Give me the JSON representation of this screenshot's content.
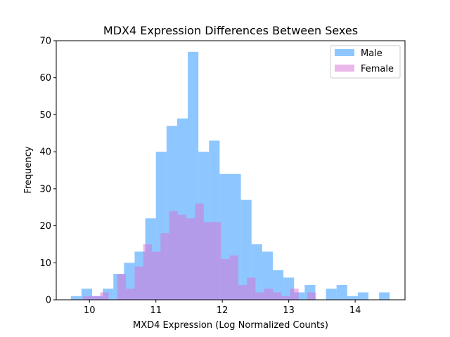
{
  "chart_data": {
    "type": "bar",
    "title": "MDX4 Expression Differences Between Sexes",
    "xlabel": "MXD4 Expression (Log Normalized Counts)",
    "ylabel": "Frequency",
    "xlim": [
      9.5,
      14.75
    ],
    "ylim": [
      0,
      70
    ],
    "xticks": [
      10,
      11,
      12,
      13,
      14
    ],
    "yticks": [
      0,
      10,
      20,
      30,
      40,
      50,
      60,
      70
    ],
    "grid": false,
    "legend_position": "top-right",
    "series": [
      {
        "name": "Male",
        "color": "#1e90ff",
        "opacity": 0.5,
        "bins": [
          [
            9.72,
            9.88,
            1
          ],
          [
            9.88,
            10.04,
            3
          ],
          [
            10.04,
            10.2,
            1
          ],
          [
            10.2,
            10.36,
            3
          ],
          [
            10.36,
            10.52,
            7
          ],
          [
            10.52,
            10.68,
            10
          ],
          [
            10.68,
            10.84,
            13
          ],
          [
            10.84,
            11.0,
            22
          ],
          [
            11.0,
            11.16,
            40
          ],
          [
            11.16,
            11.32,
            47
          ],
          [
            11.32,
            11.48,
            49
          ],
          [
            11.48,
            11.64,
            67
          ],
          [
            11.64,
            11.8,
            40
          ],
          [
            11.8,
            11.96,
            43
          ],
          [
            11.96,
            12.12,
            34
          ],
          [
            12.12,
            12.28,
            34
          ],
          [
            12.28,
            12.44,
            27
          ],
          [
            12.44,
            12.6,
            15
          ],
          [
            12.6,
            12.76,
            13
          ],
          [
            12.76,
            12.92,
            8
          ],
          [
            12.92,
            13.08,
            6
          ],
          [
            13.08,
            13.24,
            2
          ],
          [
            13.24,
            13.4,
            4
          ],
          [
            13.4,
            13.56,
            0
          ],
          [
            13.56,
            13.72,
            3
          ],
          [
            13.72,
            13.88,
            4
          ],
          [
            13.88,
            14.04,
            1
          ],
          [
            14.04,
            14.2,
            2
          ],
          [
            14.2,
            14.36,
            0
          ],
          [
            14.36,
            14.52,
            2
          ]
        ]
      },
      {
        "name": "Female",
        "color": "#da70d6",
        "opacity": 0.5,
        "bins": [
          [
            9.9,
            10.03,
            1
          ],
          [
            10.03,
            10.16,
            1
          ],
          [
            10.16,
            10.29,
            2
          ],
          [
            10.29,
            10.42,
            0
          ],
          [
            10.42,
            10.55,
            7
          ],
          [
            10.55,
            10.68,
            3
          ],
          [
            10.68,
            10.81,
            9
          ],
          [
            10.81,
            10.94,
            15
          ],
          [
            10.94,
            11.07,
            13
          ],
          [
            11.07,
            11.2,
            18
          ],
          [
            11.2,
            11.33,
            24
          ],
          [
            11.33,
            11.46,
            23
          ],
          [
            11.46,
            11.59,
            22
          ],
          [
            11.59,
            11.72,
            26
          ],
          [
            11.72,
            11.85,
            21
          ],
          [
            11.85,
            11.98,
            21
          ],
          [
            11.98,
            12.11,
            11
          ],
          [
            12.11,
            12.24,
            12
          ],
          [
            12.24,
            12.37,
            4
          ],
          [
            12.37,
            12.5,
            6
          ],
          [
            12.5,
            12.63,
            2
          ],
          [
            12.63,
            12.76,
            3
          ],
          [
            12.76,
            12.89,
            2
          ],
          [
            12.89,
            13.02,
            1
          ],
          [
            13.02,
            13.15,
            3
          ],
          [
            13.15,
            13.28,
            0
          ],
          [
            13.28,
            13.41,
            2
          ]
        ]
      }
    ]
  }
}
